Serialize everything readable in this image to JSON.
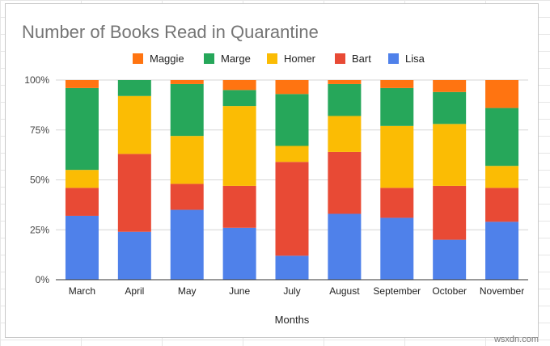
{
  "chart_data": {
    "type": "bar",
    "stacked": true,
    "percent_stacked": true,
    "title": "Number of Books Read in Quarantine",
    "xlabel": "Months",
    "ylabel": "",
    "ylim": [
      0,
      100
    ],
    "yticks": [
      0,
      25,
      50,
      75,
      100
    ],
    "ytick_labels": [
      "0%",
      "25%",
      "50%",
      "75%",
      "100%"
    ],
    "legend_position": "top",
    "categories": [
      "March",
      "April",
      "May",
      "June",
      "July",
      "August",
      "September",
      "October",
      "November"
    ],
    "series": [
      {
        "name": "Lisa",
        "color": "#4f81ea",
        "values": [
          32,
          24,
          35,
          26,
          12,
          33,
          31,
          20,
          29
        ]
      },
      {
        "name": "Bart",
        "color": "#e84a35",
        "values": [
          14,
          39,
          13,
          21,
          47,
          31,
          15,
          27,
          17
        ]
      },
      {
        "name": "Homer",
        "color": "#fbbc04",
        "values": [
          9,
          29,
          24,
          40,
          8,
          18,
          31,
          31,
          11
        ]
      },
      {
        "name": "Marge",
        "color": "#26a75a",
        "values": [
          41,
          8,
          26,
          8,
          26,
          16,
          19,
          16,
          29
        ]
      },
      {
        "name": "Maggie",
        "color": "#ff7411",
        "values": [
          4,
          0,
          2,
          5,
          7,
          2,
          4,
          6,
          14
        ]
      }
    ],
    "legend_order": [
      "Maggie",
      "Marge",
      "Homer",
      "Bart",
      "Lisa"
    ]
  },
  "watermark": "wsxdn.com"
}
